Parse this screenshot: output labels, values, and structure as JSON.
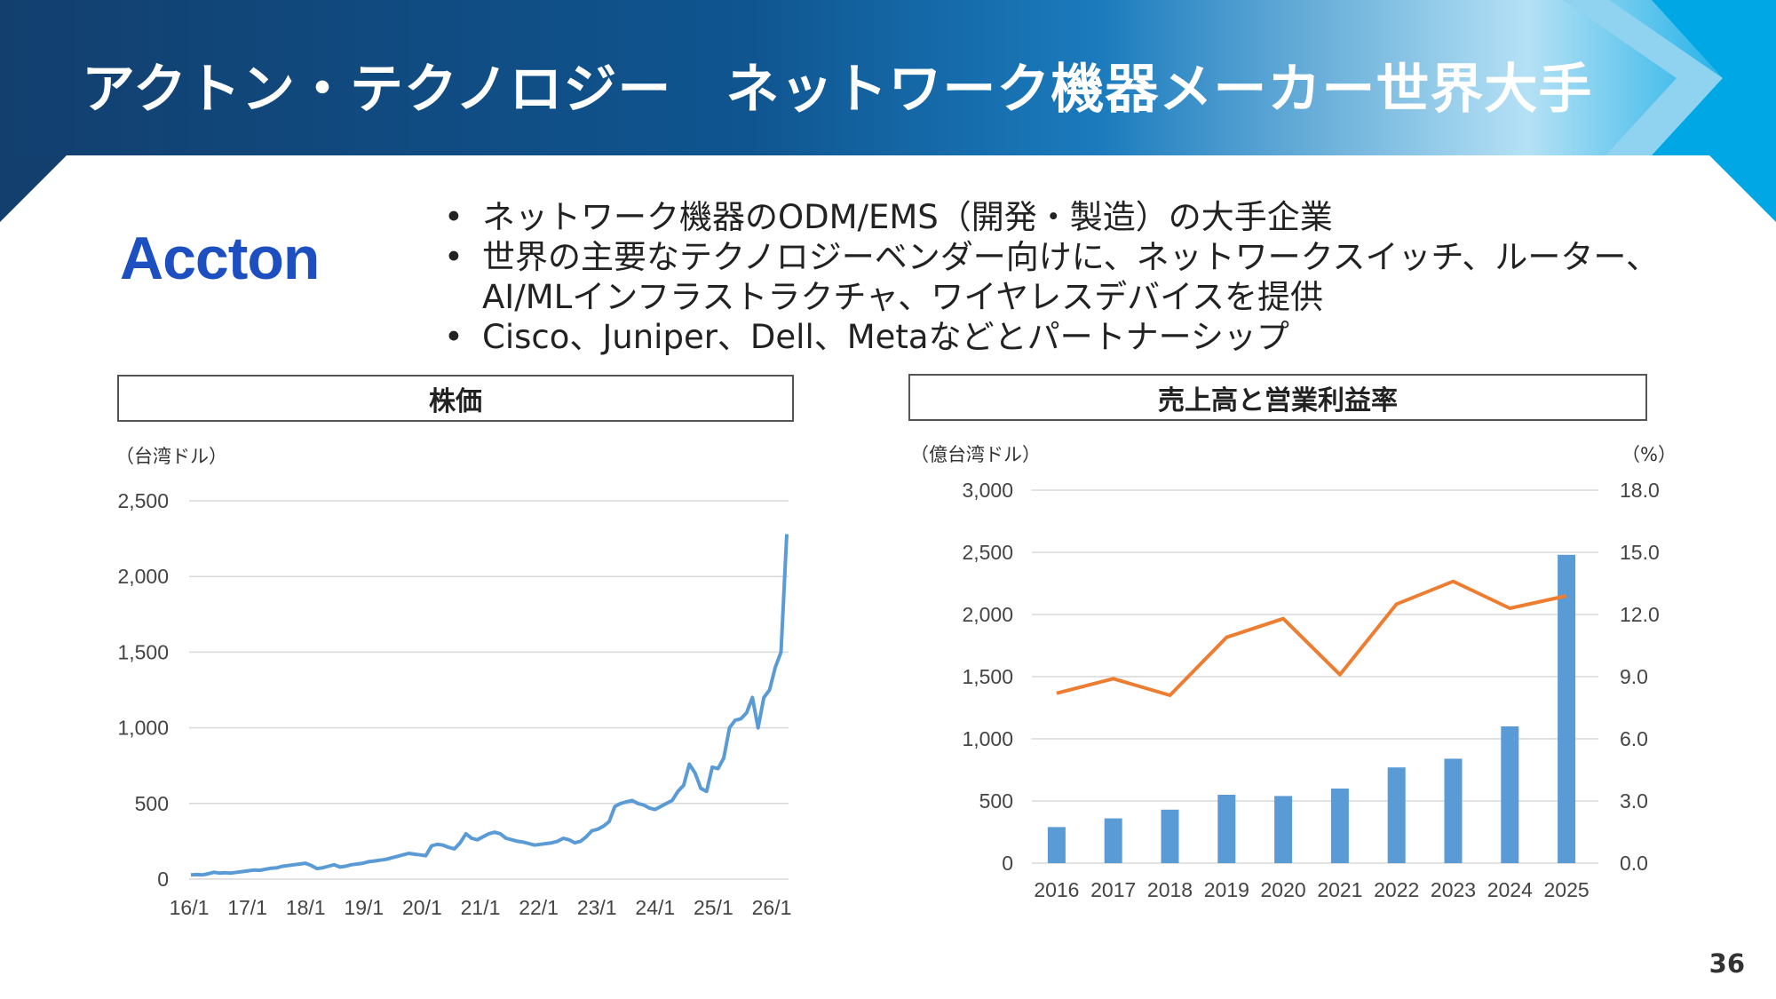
{
  "title": "アクトン・テクノロジー　ネットワーク機器メーカー世界大手",
  "logo_text": "Accton",
  "bullets": [
    "ネットワーク機器のODM/EMS（開発・製造）の大手企業",
    "世界の主要なテクノロジーベンダー向けに、ネットワークスイッチ、ルーター、",
    "AI/MLインフラストラクチャ、ワイヤレスデバイスを提供",
    "Cisco、Juniper、Dell、Metaなどとパートナーシップ"
  ],
  "bullet_marker": "•",
  "page_number": "36",
  "colors": {
    "banner_dark": "#123f6e",
    "banner_light": "#00a7e5",
    "logo": "#1d4fc0",
    "line_series": "#5b9bd5",
    "bars": "#5b9bd5",
    "margin_line": "#ed7d31",
    "grid": "#d9d9d9"
  },
  "chart_data": [
    {
      "type": "line",
      "title": "株価",
      "unit_label": "（台湾ドル）",
      "ylim": [
        0,
        2500
      ],
      "yticks": [
        0,
        500,
        1000,
        1500,
        2000,
        2500
      ],
      "ytick_labels": [
        "0",
        "500",
        "1,000",
        "1,500",
        "2,000",
        "2,500"
      ],
      "x_tick_labels": [
        "16/1",
        "17/1",
        "18/1",
        "19/1",
        "20/1",
        "21/1",
        "22/1",
        "23/1",
        "24/1",
        "25/1",
        "26/1"
      ],
      "grid": true,
      "series": [
        {
          "values": [
            28,
            30,
            28,
            35,
            45,
            40,
            42,
            40,
            45,
            50,
            55,
            60,
            58,
            65,
            72,
            75,
            85,
            90,
            95,
            100,
            105,
            90,
            70,
            75,
            85,
            95,
            80,
            85,
            95,
            100,
            105,
            115,
            120,
            125,
            130,
            140,
            150,
            160,
            170,
            165,
            160,
            155,
            220,
            230,
            225,
            210,
            200,
            240,
            300,
            270,
            260,
            280,
            300,
            310,
            300,
            270,
            260,
            250,
            245,
            235,
            225,
            230,
            235,
            240,
            250,
            270,
            260,
            240,
            250,
            280,
            320,
            330,
            350,
            380,
            480,
            500,
            510,
            520,
            500,
            490,
            470,
            460,
            480,
            500,
            520,
            580,
            620,
            760,
            700,
            600,
            580,
            740,
            730,
            800,
            1000,
            1050,
            1060,
            1100,
            1200,
            1000,
            1200,
            1250,
            1400,
            1500,
            2280
          ]
        }
      ]
    },
    {
      "type": "bar",
      "title": "売上高と営業利益率",
      "unit_label_left": "（億台湾ドル）",
      "unit_label_right": "（%）",
      "categories": [
        "2016",
        "2017",
        "2018",
        "2019",
        "2020",
        "2021",
        "2022",
        "2023",
        "2024",
        "2025"
      ],
      "ylim": [
        0,
        3000
      ],
      "y2lim": [
        0,
        18
      ],
      "yticks": [
        0,
        500,
        1000,
        1500,
        2000,
        2500,
        3000
      ],
      "ytick_labels": [
        "0",
        "500",
        "1,000",
        "1,500",
        "2,000",
        "2,500",
        "3,000"
      ],
      "y2ticks": [
        0,
        3,
        6,
        9,
        12,
        15,
        18
      ],
      "y2tick_labels": [
        "0.0",
        "3.0",
        "6.0",
        "9.0",
        "12.0",
        "15.0",
        "18.0"
      ],
      "grid": true,
      "series": [
        {
          "type": "bar",
          "axis": "left",
          "values": [
            290,
            360,
            430,
            550,
            540,
            600,
            770,
            840,
            1100,
            2480
          ]
        },
        {
          "type": "line",
          "axis": "right",
          "values": [
            8.2,
            8.9,
            8.1,
            10.9,
            11.8,
            9.1,
            12.5,
            13.6,
            12.3,
            12.9
          ]
        }
      ]
    }
  ]
}
